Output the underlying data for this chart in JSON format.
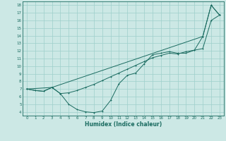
{
  "xlabel": "Humidex (Indice chaleur)",
  "xlim": [
    -0.5,
    23.5
  ],
  "ylim": [
    3.5,
    18.5
  ],
  "yticks": [
    4,
    5,
    6,
    7,
    8,
    9,
    10,
    11,
    12,
    13,
    14,
    15,
    16,
    17,
    18
  ],
  "xticks": [
    0,
    1,
    2,
    3,
    4,
    5,
    6,
    7,
    8,
    9,
    10,
    11,
    12,
    13,
    14,
    15,
    16,
    17,
    18,
    19,
    20,
    21,
    22,
    23
  ],
  "bg_color": "#cce8e5",
  "line_color": "#1a6b60",
  "grid_color": "#9ecfcb",
  "line1_x": [
    0,
    1,
    2,
    3,
    4,
    5,
    6,
    7,
    8,
    9,
    10,
    11,
    12,
    13,
    14,
    15,
    16,
    17,
    18,
    19,
    20,
    21,
    22,
    23
  ],
  "line1_y": [
    7.0,
    6.8,
    6.7,
    7.2,
    6.4,
    5.0,
    4.3,
    4.0,
    3.9,
    4.1,
    5.5,
    7.7,
    8.8,
    9.1,
    10.3,
    11.5,
    11.7,
    11.9,
    11.7,
    11.7,
    12.1,
    13.9,
    18.0,
    16.7
  ],
  "line2_x": [
    0,
    1,
    2,
    3,
    4,
    5,
    6,
    7,
    8,
    9,
    10,
    11,
    12,
    13,
    14,
    15,
    16,
    17,
    18,
    19,
    20,
    21,
    22,
    23
  ],
  "line2_y": [
    7.0,
    6.8,
    6.7,
    7.2,
    6.4,
    6.5,
    6.8,
    7.2,
    7.6,
    8.1,
    8.6,
    9.1,
    9.6,
    10.1,
    10.6,
    11.1,
    11.4,
    11.7,
    11.6,
    11.9,
    12.1,
    12.3,
    16.0,
    16.7
  ],
  "line3_x": [
    0,
    3,
    21,
    22,
    23
  ],
  "line3_y": [
    7.0,
    7.2,
    13.9,
    18.0,
    16.7
  ]
}
